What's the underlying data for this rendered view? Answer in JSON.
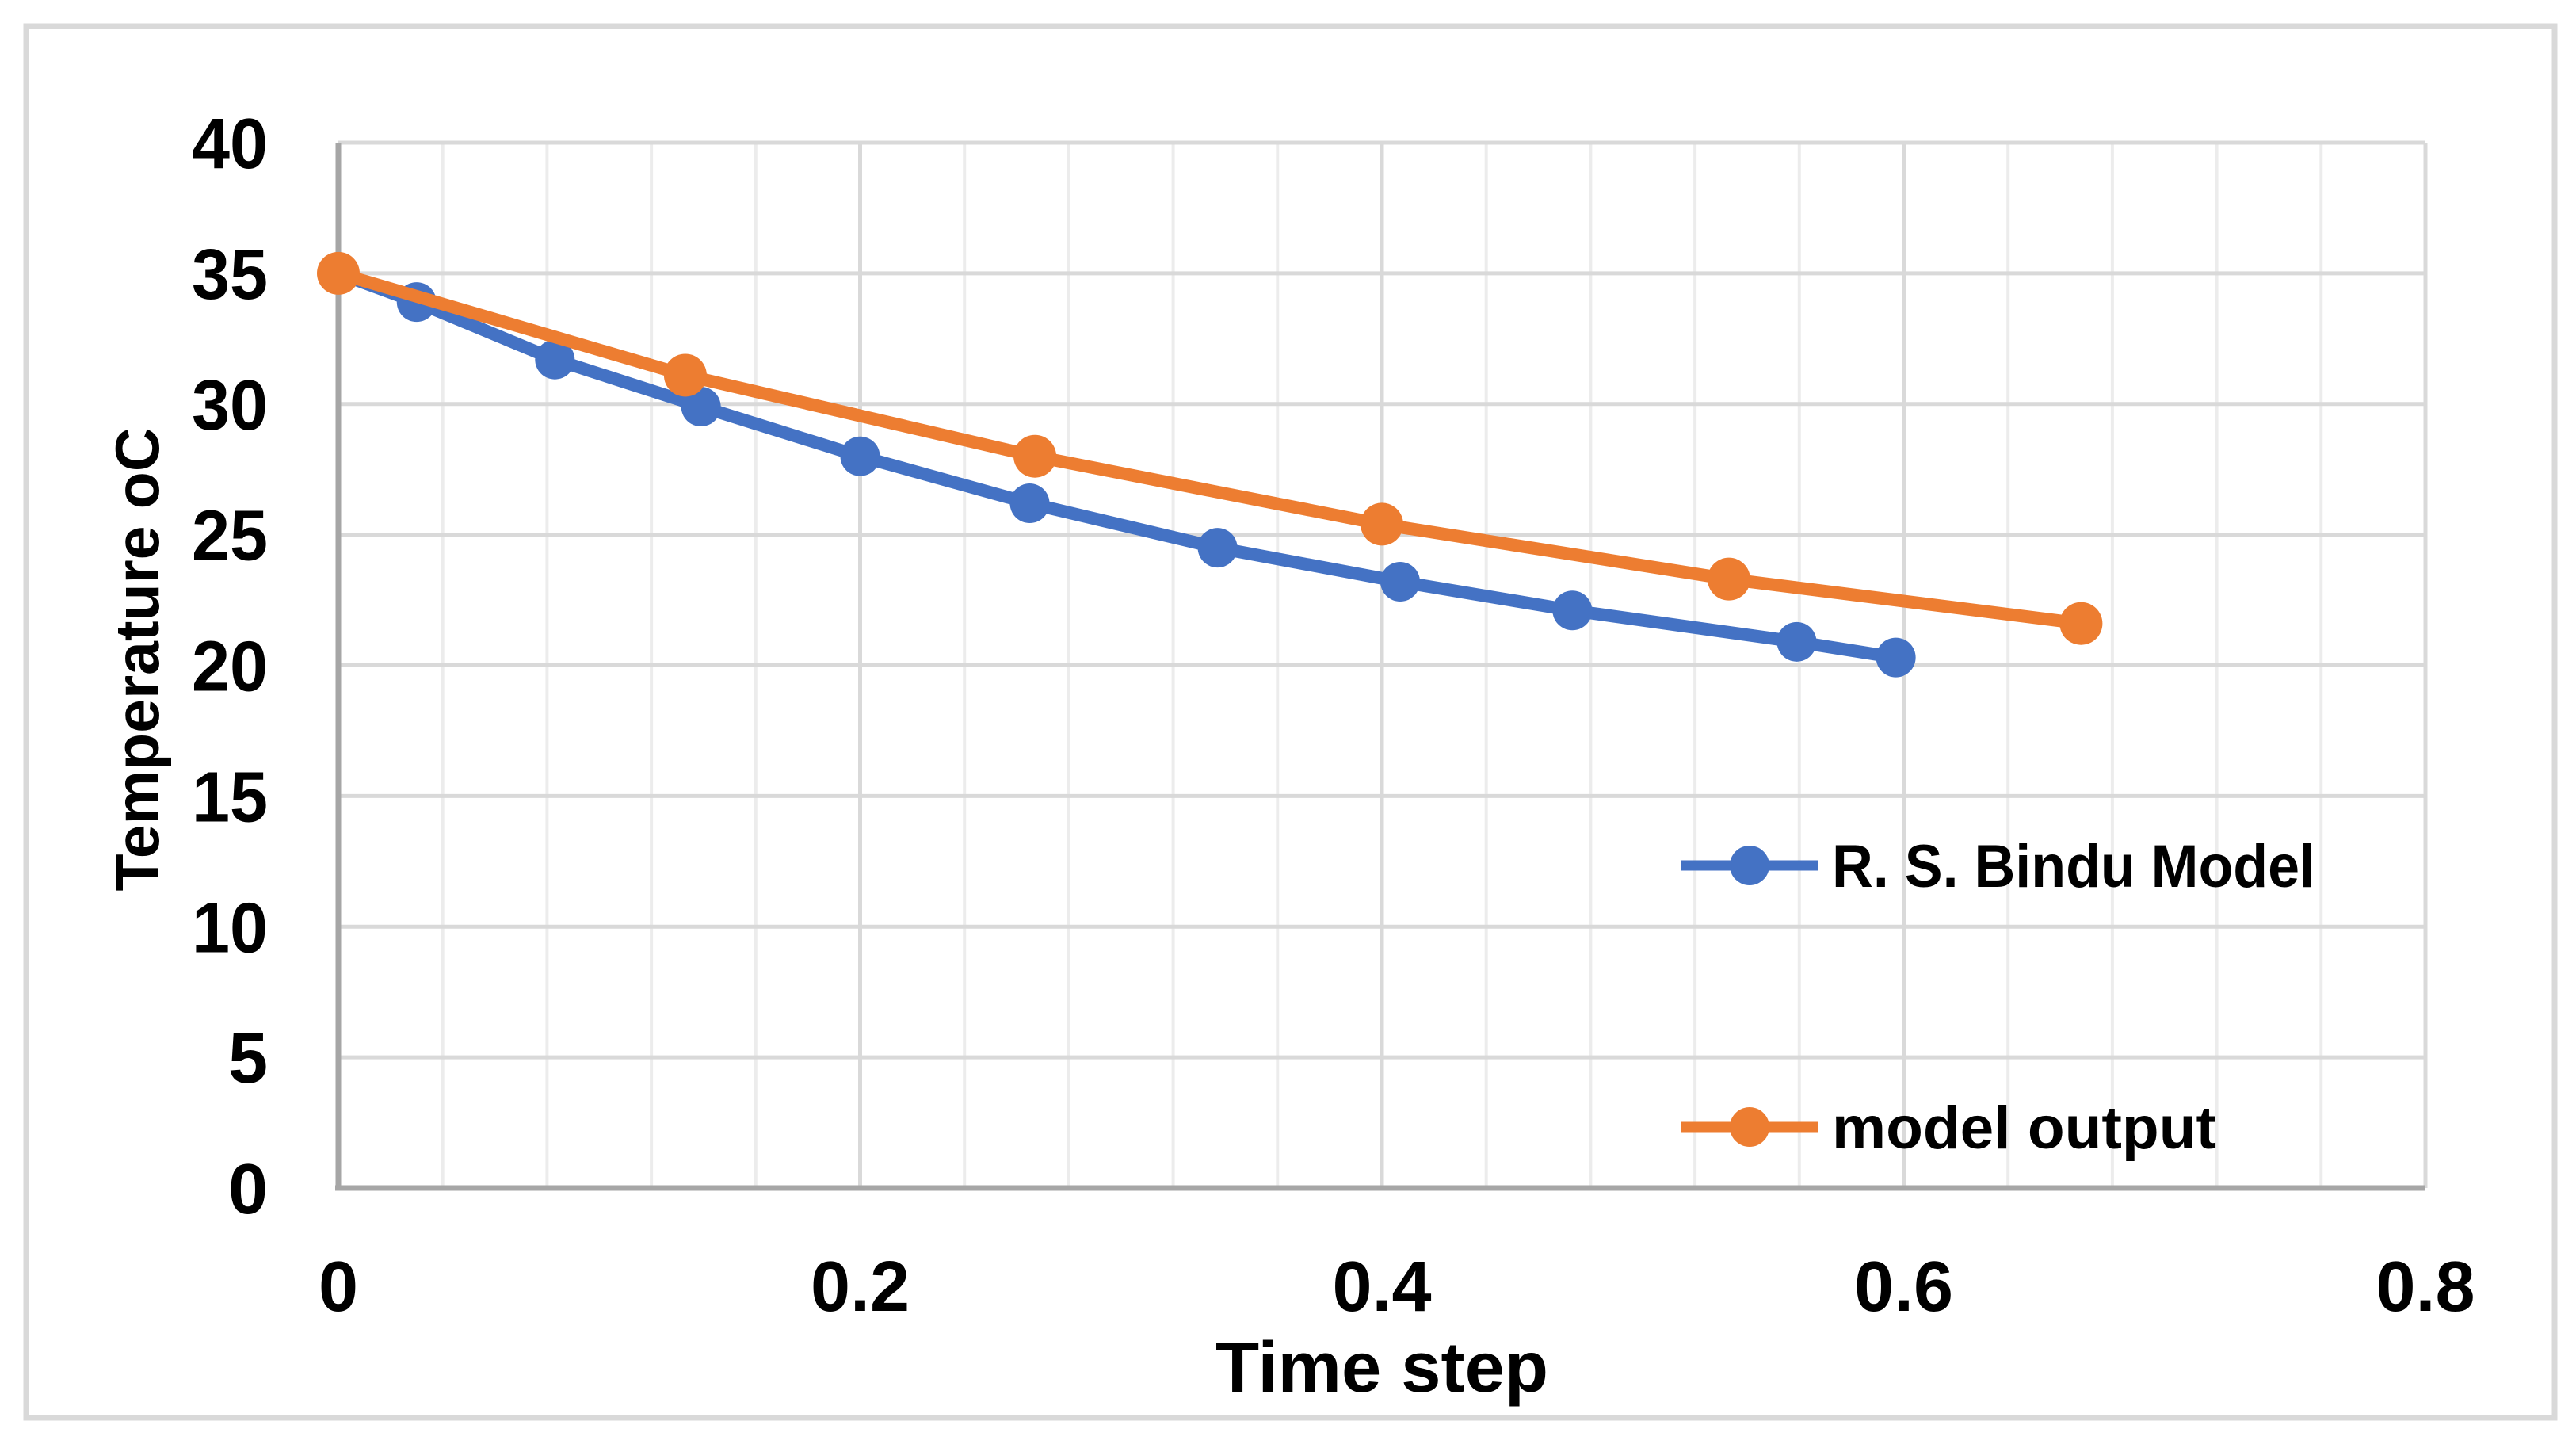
{
  "figure": {
    "background": "#ffffff",
    "border_color": "#d9d9d9"
  },
  "chart_data": {
    "type": "line",
    "title": "",
    "xlabel": "Time step",
    "ylabel": "Temperature oC",
    "xlim": [
      0,
      0.8
    ],
    "ylim": [
      0,
      40
    ],
    "x_tick_labels": [
      "0",
      "0.2",
      "0.4",
      "0.6",
      "0.8"
    ],
    "x_tick_values": [
      0,
      0.2,
      0.4,
      0.6,
      0.8
    ],
    "y_tick_labels": [
      "0",
      "5",
      "10",
      "15",
      "20",
      "25",
      "30",
      "35",
      "40"
    ],
    "y_tick_values": [
      0,
      5,
      10,
      15,
      20,
      25,
      30,
      35,
      40
    ],
    "grid": {
      "horizontal_step": 5,
      "vertical_minor_step": 0.04,
      "vertical_major_step": 0.2,
      "color_major": "#d9d9d9",
      "color_minor": "#ececec"
    },
    "axis_color": "#a6a6a6",
    "legend_position": "inside-right",
    "series": [
      {
        "name": "R. S. Bindu Model",
        "color": "#4472C4",
        "x": [
          0,
          0.03,
          0.083,
          0.139,
          0.2,
          0.265,
          0.337,
          0.407,
          0.473,
          0.559,
          0.597
        ],
        "y": [
          35,
          33.9,
          31.7,
          29.9,
          28.0,
          26.2,
          24.5,
          23.2,
          22.1,
          20.9,
          20.3
        ]
      },
      {
        "name": "model output",
        "color": "#ED7D31",
        "x": [
          0,
          0.133,
          0.267,
          0.4,
          0.533,
          0.668
        ],
        "y": [
          35,
          31.1,
          28.0,
          25.4,
          23.3,
          21.6
        ]
      }
    ]
  }
}
